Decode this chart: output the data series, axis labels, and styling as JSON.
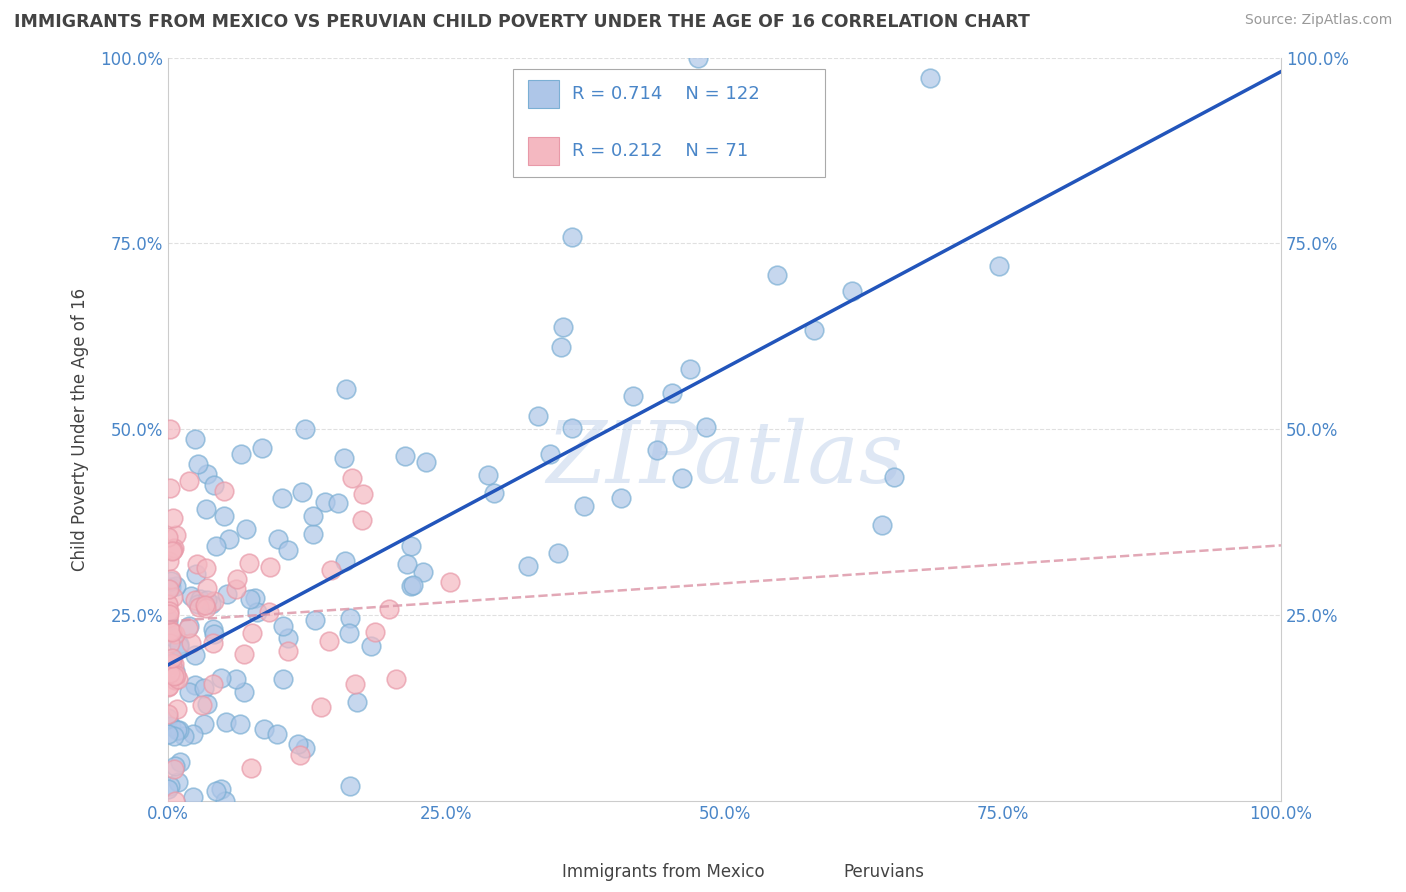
{
  "title": "IMMIGRANTS FROM MEXICO VS PERUVIAN CHILD POVERTY UNDER THE AGE OF 16 CORRELATION CHART",
  "source": "Source: ZipAtlas.com",
  "ylabel": "Child Poverty Under the Age of 16",
  "xlim": [
    0.0,
    1.0
  ],
  "ylim": [
    0.0,
    1.0
  ],
  "xtick_labels": [
    "0.0%",
    "25.0%",
    "50.0%",
    "75.0%",
    "100.0%"
  ],
  "xtick_vals": [
    0.0,
    0.25,
    0.5,
    0.75,
    1.0
  ],
  "ytick_labels": [
    "25.0%",
    "50.0%",
    "75.0%",
    "100.0%"
  ],
  "ytick_vals": [
    0.25,
    0.5,
    0.75,
    1.0
  ],
  "blue_R": 0.714,
  "blue_N": 122,
  "pink_R": 0.212,
  "pink_N": 71,
  "blue_face_color": "#aec6e8",
  "blue_edge_color": "#7bafd4",
  "pink_face_color": "#f4b8c1",
  "pink_edge_color": "#e899a8",
  "blue_line_color": "#2255bb",
  "pink_line_color": "#dd99aa",
  "title_color": "#434343",
  "source_color": "#999999",
  "axis_label_color": "#4a86c8",
  "watermark_color": "#c8d8ee",
  "background_color": "#ffffff",
  "grid_color": "#e0e0e0",
  "legend_text_color": "#4a86c8"
}
